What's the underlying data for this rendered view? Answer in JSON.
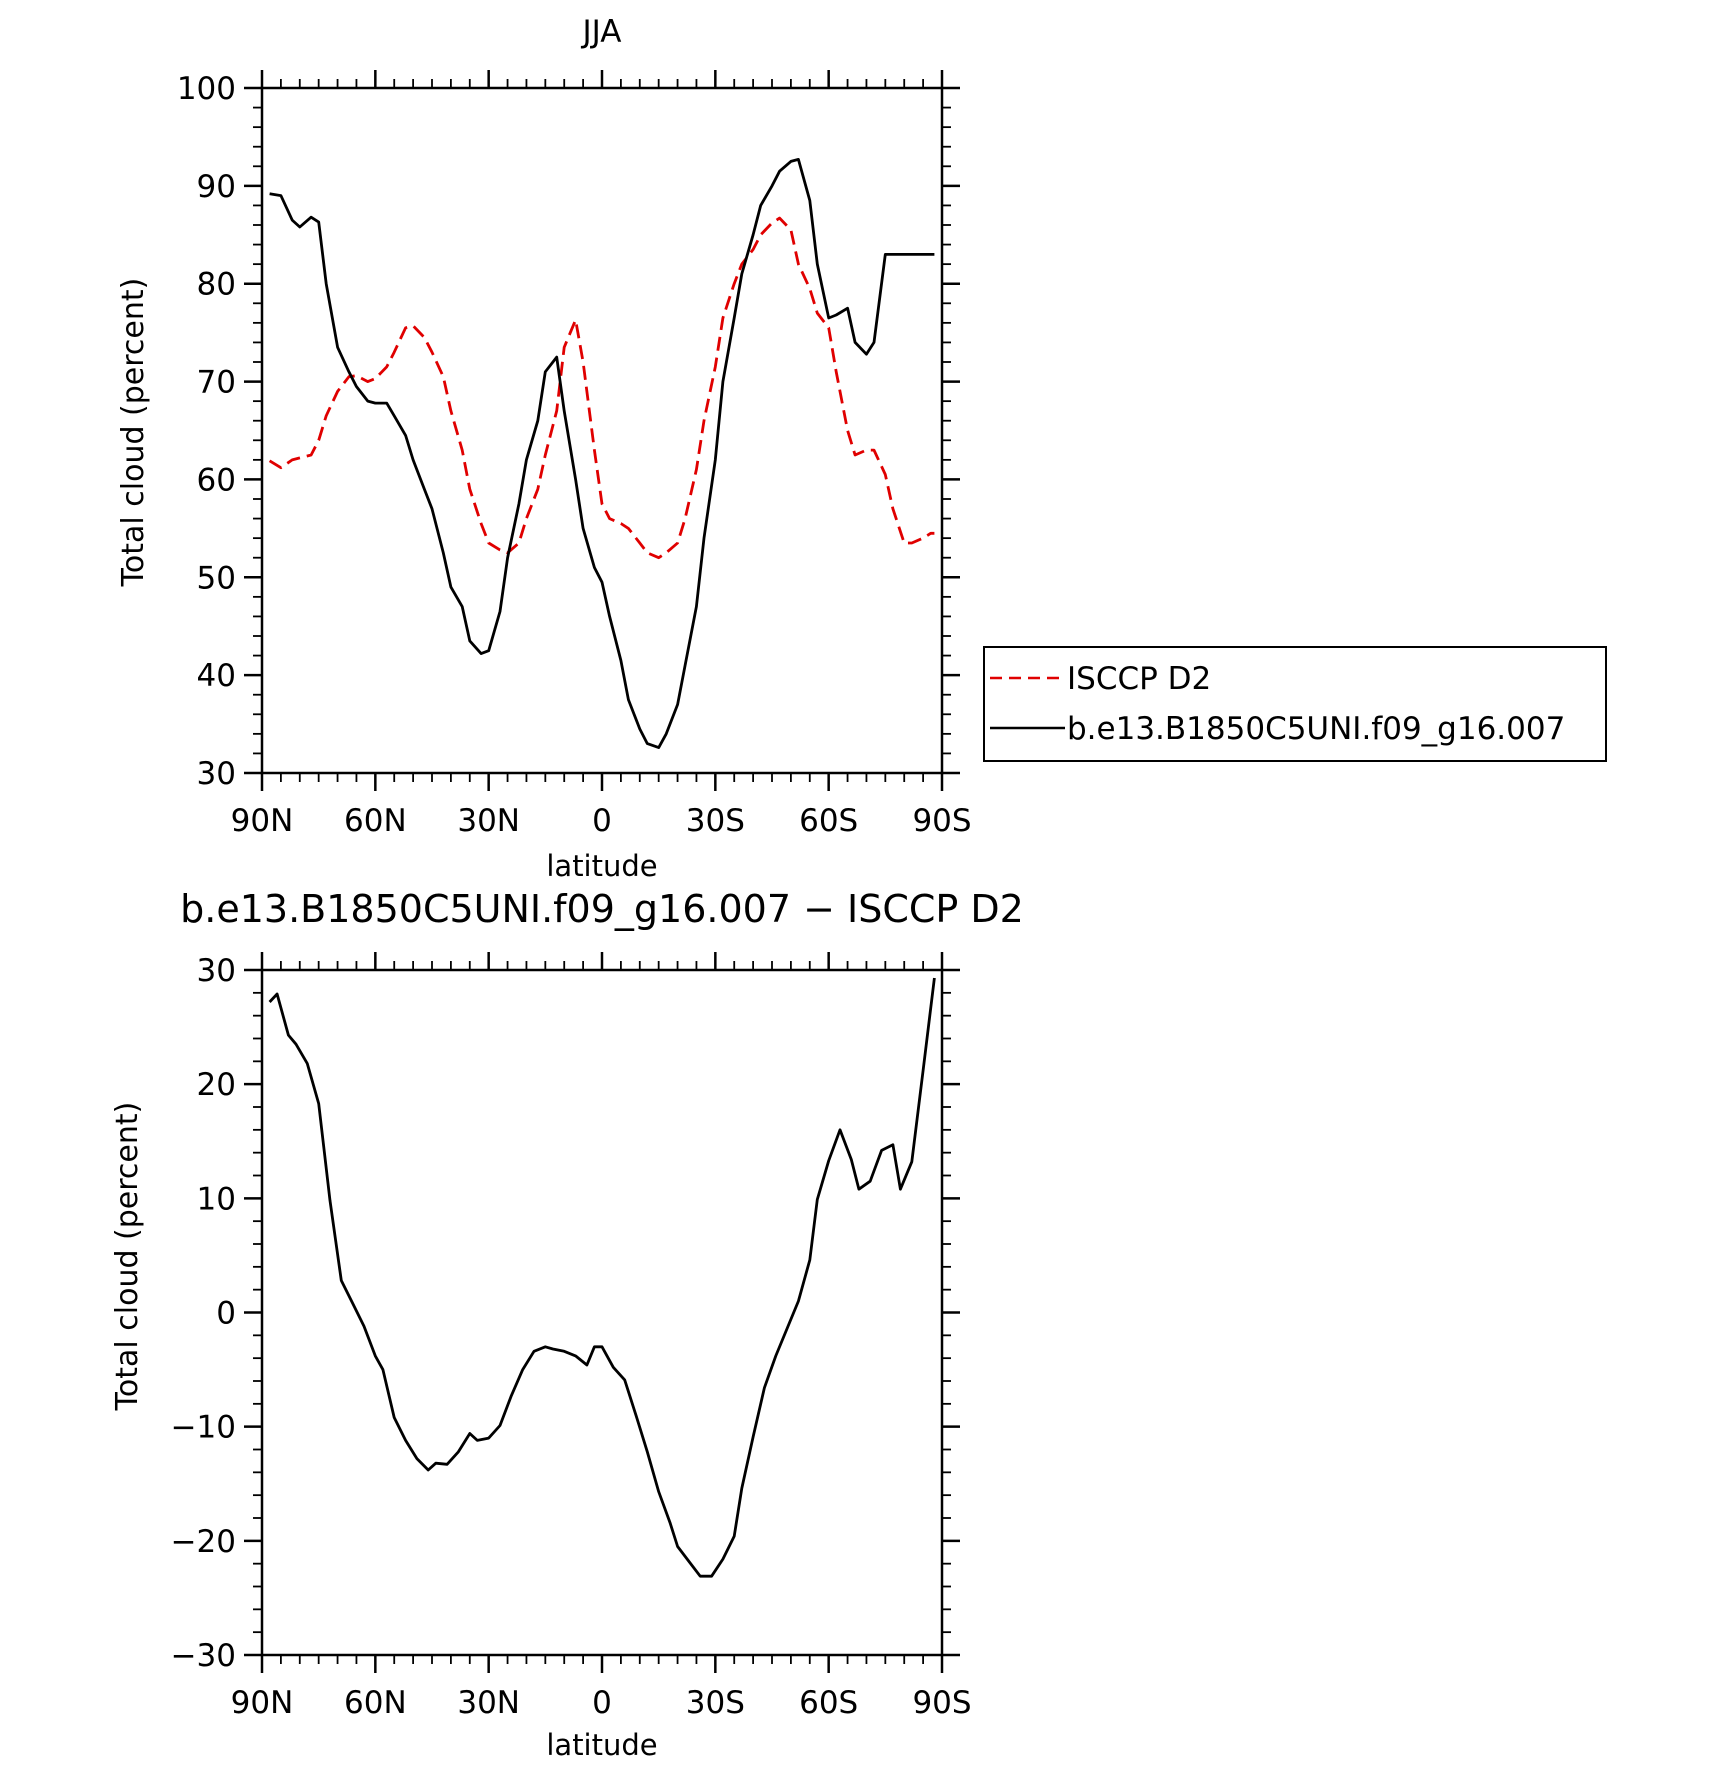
{
  "chart_data": [
    {
      "type": "line",
      "title": "JJA",
      "xlabel": "latitude",
      "ylabel": "Total cloud (percent)",
      "ylim": [
        30,
        100
      ],
      "yticks": [
        30,
        40,
        50,
        60,
        70,
        80,
        90,
        100
      ],
      "xlim": [
        90,
        -90
      ],
      "xticks": [
        90,
        60,
        30,
        0,
        -30,
        -60,
        -90
      ],
      "xticklabels": [
        "90N",
        "60N",
        "30N",
        "0",
        "30S",
        "60S",
        "90S"
      ],
      "x": [
        88,
        85,
        82,
        80,
        77,
        75,
        73,
        70,
        67,
        65,
        62,
        60,
        57,
        55,
        52,
        50,
        47,
        45,
        42,
        40,
        37,
        35,
        32,
        30,
        27,
        25,
        22,
        20,
        17,
        15,
        12,
        10,
        7,
        5,
        2,
        0,
        -2,
        -5,
        -7,
        -10,
        -12,
        -15,
        -17,
        -20,
        -22,
        -25,
        -27,
        -30,
        -32,
        -35,
        -37,
        -40,
        -42,
        -45,
        -47,
        -50,
        -52,
        -55,
        -57,
        -60,
        -62,
        -65,
        -67,
        -70,
        -72,
        -75,
        -77,
        -80,
        -82,
        -85,
        -87,
        -88
      ],
      "series": [
        {
          "name": "ISCCP D2",
          "color": "#e00000",
          "dash": "dashed",
          "values": [
            61.9,
            61.2,
            62.0,
            62.2,
            62.5,
            64.0,
            66.5,
            69.0,
            70.5,
            70.6,
            70.0,
            70.3,
            71.5,
            73.0,
            75.5,
            75.7,
            74.5,
            73.0,
            70.5,
            67.0,
            63.0,
            59.0,
            55.5,
            53.5,
            52.8,
            52.5,
            53.5,
            56.0,
            59.0,
            62.5,
            67.0,
            73.5,
            76.3,
            72.0,
            63.0,
            57.5,
            56.0,
            55.5,
            55.0,
            53.5,
            52.5,
            52.0,
            52.5,
            53.5,
            56.0,
            61.0,
            66.0,
            71.5,
            76.5,
            80.0,
            82.0,
            83.5,
            85.0,
            86.2,
            86.7,
            85.5,
            82.0,
            79.5,
            77.0,
            75.5,
            71.0,
            65.0,
            62.5,
            63.0,
            63.0,
            60.5,
            57.0,
            53.5,
            53.5,
            54.0,
            54.5,
            54.5
          ]
        },
        {
          "name": "b.e13.B1850C5UNI.f09_g16.007",
          "color": "#000000",
          "dash": "solid",
          "values": [
            89.2,
            89.0,
            86.5,
            85.8,
            86.8,
            86.3,
            80.0,
            73.5,
            71.0,
            69.5,
            68.0,
            67.8,
            67.8,
            66.5,
            64.5,
            62.0,
            59.0,
            57.0,
            52.5,
            49.0,
            47.0,
            43.5,
            42.2,
            42.5,
            46.5,
            52.0,
            57.5,
            62.0,
            66.0,
            71.0,
            72.5,
            67.0,
            60.0,
            55.0,
            51.0,
            49.5,
            46.0,
            41.5,
            37.5,
            34.5,
            33.0,
            32.6,
            34.0,
            37.0,
            41.0,
            47.0,
            54.0,
            62.0,
            70.0,
            76.5,
            81.0,
            85.0,
            88.0,
            90.0,
            91.5,
            92.5,
            92.7,
            88.5,
            82.0,
            76.5,
            76.8,
            77.5,
            74.0,
            72.8,
            74.0,
            83.0,
            83.0,
            83.0,
            83.0,
            83.0,
            83.0,
            83.0
          ]
        }
      ],
      "legend": "right of plot"
    },
    {
      "type": "line",
      "title": "b.e13.B1850C5UNI.f09_g16.007 − ISCCP D2",
      "xlabel": "latitude",
      "ylabel": "Total cloud (percent)",
      "ylim": [
        -30,
        30
      ],
      "yticks": [
        -30,
        -20,
        -10,
        0,
        10,
        20,
        30
      ],
      "yticklabels": [
        "−30",
        "−20",
        "−10",
        "0",
        "10",
        "20",
        "30"
      ],
      "xlim": [
        90,
        -90
      ],
      "xticks": [
        90,
        60,
        30,
        0,
        -30,
        -60,
        -90
      ],
      "xticklabels": [
        "90N",
        "60N",
        "30N",
        "0",
        "30S",
        "60S",
        "90S"
      ],
      "x": [
        88,
        86,
        83,
        81,
        78,
        75,
        72,
        69,
        66,
        63,
        60,
        58,
        55,
        52,
        49,
        46,
        44,
        41,
        38,
        35,
        33,
        30,
        27,
        24,
        21,
        18,
        15,
        13,
        10,
        7,
        4,
        2,
        0,
        -3,
        -6,
        -9,
        -12,
        -15,
        -18,
        -20,
        -23,
        -26,
        -29,
        -32,
        -35,
        -37,
        -40,
        -43,
        -46,
        -49,
        -52,
        -55,
        -57,
        -60,
        -63,
        -66,
        -68,
        -71,
        -74,
        -77,
        -79,
        -82,
        -85,
        -88
      ],
      "series": [
        {
          "name": "",
          "color": "#000000",
          "dash": "solid",
          "values": [
            27.2,
            27.9,
            24.3,
            23.5,
            21.8,
            18.3,
            9.8,
            2.8,
            0.8,
            -1.2,
            -3.8,
            -5.0,
            -9.2,
            -11.2,
            -12.8,
            -13.8,
            -13.2,
            -13.3,
            -12.2,
            -10.6,
            -11.2,
            -11.0,
            -9.9,
            -7.3,
            -5.0,
            -3.4,
            -3.0,
            -3.2,
            -3.4,
            -3.8,
            -4.6,
            -3.0,
            -3.0,
            -4.8,
            -5.9,
            -9.0,
            -12.2,
            -15.7,
            -18.4,
            -20.5,
            -21.8,
            -23.1,
            -23.1,
            -21.6,
            -19.6,
            -15.4,
            -10.9,
            -6.6,
            -3.8,
            -1.4,
            1.0,
            4.6,
            9.9,
            13.3,
            16.0,
            13.4,
            10.8,
            11.5,
            14.2,
            14.7,
            10.8,
            13.2,
            21.2,
            29.3
          ]
        }
      ]
    }
  ]
}
